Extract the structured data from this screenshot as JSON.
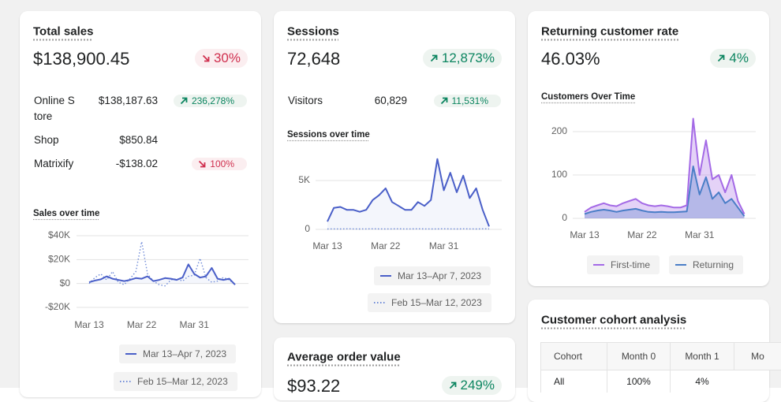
{
  "cards": [
    {
      "title": "Total sales",
      "value": "$138,900.45",
      "change": {
        "value": "30%",
        "direction": "down"
      },
      "rows": [
        {
          "label": "Online Store",
          "value": "$138,187.63",
          "change": {
            "value": "236,278%",
            "direction": "up"
          }
        },
        {
          "label": "Shop",
          "value": "$850.84"
        },
        {
          "label": "Matrixify",
          "value": "-$138.02",
          "change": {
            "value": "100%",
            "direction": "down"
          }
        }
      ],
      "chart": {
        "type": "line",
        "title": "Sales over time",
        "categories": [
          "Mar 13",
          null,
          null,
          null,
          null,
          null,
          null,
          null,
          null,
          "Mar 22",
          null,
          null,
          null,
          null,
          null,
          null,
          null,
          null,
          "Mar 31",
          null,
          null,
          null,
          null,
          null,
          null,
          null
        ],
        "series": [
          {
            "name": "Mar 13–Apr 7, 2023",
            "color": "#4a5fc8",
            "style": "solid",
            "area": true,
            "values": [
              1000,
              2500,
              3500,
              6000,
              4000,
              3000,
              2000,
              3000,
              4500,
              4000,
              6000,
              2000,
              3000,
              4500,
              4000,
              3000,
              5000,
              16000,
              8000,
              5000,
              6000,
              13000,
              4000,
              3000,
              4000,
              -1000
            ]
          },
          {
            "name": "Feb 15–Mar 12, 2023",
            "color": "#6f8bd8",
            "style": "dotted",
            "area": false,
            "values": [
              0,
              5000,
              8000,
              3000,
              10000,
              1000,
              -1000,
              4000,
              10000,
              35000,
              8000,
              2000,
              -1000,
              -2000,
              3000,
              4000,
              2000,
              6000,
              7000,
              21000,
              5000,
              1000,
              2000,
              5000,
              3000,
              -1000
            ]
          }
        ],
        "ylim": [
          -20000,
          40000
        ],
        "yticks": [
          {
            "value": 40000,
            "label": "$40K"
          },
          {
            "value": 20000,
            "label": "$20K"
          },
          {
            "value": 0,
            "label": "$0"
          },
          {
            "value": -20000,
            "label": "-$20K"
          }
        ],
        "grid": true
      }
    },
    {
      "title": "Sessions",
      "value": "72,648",
      "change": {
        "value": "12,873%",
        "direction": "up"
      },
      "rows": [
        {
          "label": "Visitors",
          "value": "60,829",
          "change": {
            "value": "11,531%",
            "direction": "up"
          }
        }
      ],
      "chart": {
        "type": "line",
        "title": "Sessions over time",
        "categories": [
          "Mar 13",
          null,
          null,
          null,
          null,
          null,
          null,
          null,
          null,
          "Mar 22",
          null,
          null,
          null,
          null,
          null,
          null,
          null,
          null,
          "Mar 31",
          null,
          null,
          null,
          null,
          null,
          null,
          null
        ],
        "series": [
          {
            "name": "Mar 13–Apr 7, 2023",
            "color": "#4a5fc8",
            "style": "solid",
            "area": true,
            "values": [
              800,
              2200,
              2300,
              2000,
              2000,
              1800,
              2000,
              3000,
              3500,
              4200,
              2800,
              2400,
              2000,
              2000,
              2800,
              2400,
              3000,
              7200,
              4000,
              5800,
              3800,
              5500,
              3200,
              4200,
              2000,
              300
            ]
          },
          {
            "name": "Feb 15–Mar 12, 2023",
            "color": "#6f8bd8",
            "style": "dotted",
            "area": false,
            "values": [
              40,
              50,
              40,
              60,
              50,
              40,
              50,
              60,
              50,
              40,
              50,
              60,
              40,
              50,
              60,
              50,
              40,
              50,
              60,
              50,
              40,
              60,
              50,
              40,
              60,
              50
            ]
          }
        ],
        "ylim": [
          0,
          8000
        ],
        "yticks": [
          {
            "value": 5000,
            "label": "5K"
          },
          0
        ],
        "grid": true
      }
    },
    {
      "title": "Returning customer rate",
      "value": "46.03%",
      "change": {
        "value": "4%",
        "direction": "up"
      },
      "chart": {
        "type": "line",
        "title": "Customers Over Time",
        "categories": [
          "Mar 13",
          null,
          null,
          null,
          null,
          null,
          null,
          null,
          null,
          "Mar 22",
          null,
          null,
          null,
          null,
          null,
          null,
          null,
          null,
          "Mar 31",
          null,
          null,
          null,
          null,
          null,
          null,
          null
        ],
        "series": [
          {
            "name": "First-time",
            "color": "#a46ae6",
            "style": "solid",
            "area": true,
            "values": [
              15,
              25,
              30,
              35,
              30,
              28,
              35,
              40,
              45,
              35,
              30,
              28,
              30,
              28,
              25,
              25,
              30,
              230,
              100,
              180,
              90,
              100,
              60,
              100,
              40,
              10
            ]
          },
          {
            "name": "Returning",
            "color": "#4a7ec7",
            "style": "solid",
            "area": true,
            "values": [
              10,
              15,
              18,
              20,
              18,
              15,
              18,
              20,
              22,
              18,
              15,
              14,
              15,
              14,
              14,
              15,
              16,
              120,
              55,
              95,
              45,
              60,
              35,
              45,
              25,
              5
            ]
          }
        ],
        "ylim": [
          0,
          240
        ],
        "yticks": [
          200,
          100,
          0
        ],
        "grid": true
      }
    },
    {
      "title": "Average order value",
      "value": "$93.22",
      "change": {
        "value": "249%",
        "direction": "up"
      }
    },
    {
      "title": "Customer cohort analysis",
      "table": {
        "columns": [
          "Cohort",
          "Month 0",
          "Month 1",
          "Mo"
        ],
        "rows": [
          [
            "All",
            "100%",
            "4%"
          ]
        ]
      }
    }
  ]
}
